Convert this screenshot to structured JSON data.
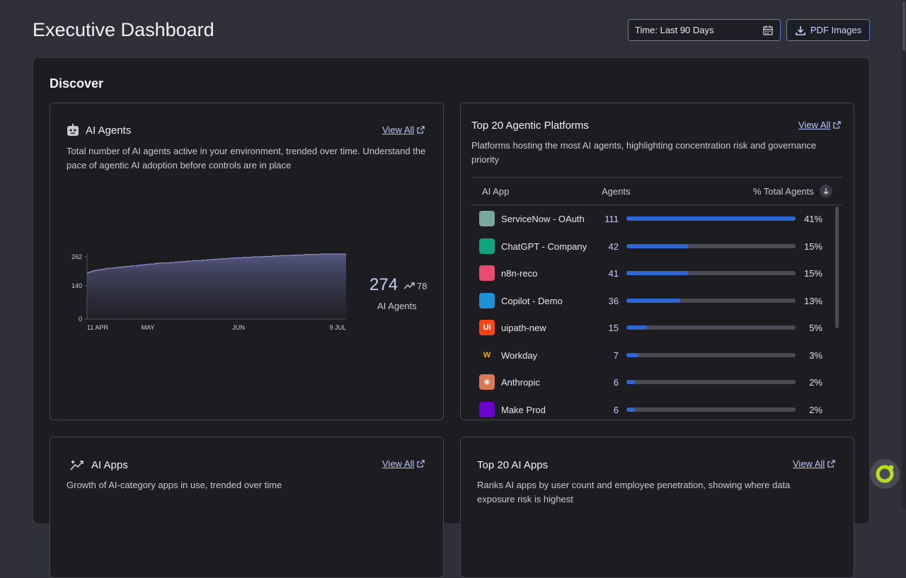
{
  "header": {
    "title": "Executive Dashboard",
    "time_filter": "Time: Last 90 Days",
    "pdf_button": "PDF Images"
  },
  "section": {
    "title": "Discover"
  },
  "ai_agents_card": {
    "title": "AI Agents",
    "view_all": "View All",
    "description": "Total number of AI agents active in your environment, trended over time. Understand the pace of agentic AI adoption before controls are in place",
    "total": "274",
    "delta": "78",
    "total_label": "AI Agents",
    "chart_data": {
      "type": "area",
      "x": [
        "11 APR",
        "",
        "",
        "",
        "",
        "",
        "",
        "",
        "",
        "",
        "",
        "",
        "",
        "",
        "",
        "",
        "",
        "",
        "",
        "",
        "",
        "",
        "",
        "",
        "",
        "",
        "",
        "",
        "",
        "",
        "",
        "",
        "",
        "",
        "",
        "",
        "",
        "",
        "",
        "",
        "",
        "",
        "",
        "",
        "",
        "",
        "",
        "",
        "",
        "",
        "",
        "",
        "",
        "",
        "",
        "",
        "",
        "",
        "",
        "",
        "",
        "",
        "",
        "",
        "",
        "",
        "",
        "",
        "",
        "",
        "",
        "",
        "",
        "",
        "",
        "",
        "",
        "",
        "",
        "",
        "",
        "",
        "",
        "",
        "",
        "",
        "",
        "",
        "9 JUL"
      ],
      "x_ticks": [
        "11 APR",
        "MAY",
        "JUN",
        "9 JUL"
      ],
      "y_ticks": [
        "0",
        "140",
        "262"
      ],
      "ylim": [
        0,
        274
      ],
      "values": [
        196,
        200,
        204,
        206,
        208,
        210,
        212,
        214,
        214,
        216,
        218,
        218,
        220,
        222,
        222,
        224,
        224,
        226,
        228,
        228,
        230,
        232,
        232,
        234,
        236,
        236,
        236,
        236,
        238,
        238,
        240,
        240,
        242,
        242,
        244,
        244,
        246,
        246,
        246,
        248,
        248,
        250,
        250,
        252,
        252,
        254,
        254,
        254,
        256,
        256,
        258,
        258,
        258,
        260,
        260,
        260,
        262,
        262,
        262,
        262,
        264,
        264,
        264,
        266,
        266,
        266,
        268,
        268,
        268,
        268,
        270,
        270,
        270,
        270,
        272,
        272,
        272,
        272,
        272,
        274,
        274,
        274,
        274,
        274,
        274,
        274,
        274,
        274,
        274
      ]
    }
  },
  "platforms_card": {
    "title": "Top 20 Agentic Platforms",
    "view_all": "View All",
    "description": "Platforms hosting the most AI agents, highlighting concentration risk and governance priority",
    "columns": {
      "app": "AI App",
      "agents": "Agents",
      "pct": "% Total Agents"
    },
    "rows": [
      {
        "name": "ServiceNow - OAuth",
        "agents": "111",
        "pct": "41%",
        "share": 1.0,
        "logo_color": "#7aa89a",
        "logo_text": ""
      },
      {
        "name": "ChatGPT - Company",
        "agents": "42",
        "pct": "15%",
        "share": 0.366,
        "logo_color": "#10a37f",
        "logo_text": ""
      },
      {
        "name": "n8n-reco",
        "agents": "41",
        "pct": "15%",
        "share": 0.366,
        "logo_color": "#ea4b71",
        "logo_text": ""
      },
      {
        "name": "Copilot - Demo",
        "agents": "36",
        "pct": "13%",
        "share": 0.317,
        "logo_color": "#1f8fd6",
        "logo_text": ""
      },
      {
        "name": "uipath-new",
        "agents": "15",
        "pct": "5%",
        "share": 0.122,
        "logo_color": "#fa4616",
        "logo_text": "Ui"
      },
      {
        "name": "Workday",
        "agents": "7",
        "pct": "3%",
        "share": 0.073,
        "logo_color": "#1c1c21",
        "logo_text": "W"
      },
      {
        "name": "Anthropic",
        "agents": "6",
        "pct": "2%",
        "share": 0.049,
        "logo_color": "#d97757",
        "logo_text": "✳"
      },
      {
        "name": "Make Prod",
        "agents": "6",
        "pct": "2%",
        "share": 0.049,
        "logo_color": "#6d00cc",
        "logo_text": ""
      }
    ]
  },
  "ai_apps_card": {
    "title": "AI Apps",
    "view_all": "View All",
    "description": "Growth of AI-category apps in use, trended over time"
  },
  "top_ai_apps_card": {
    "title": "Top 20 AI Apps",
    "view_all": "View All",
    "description": "Ranks AI apps by user count and employee penetration, showing where data exposure risk is highest"
  },
  "colors": {
    "accent": "#2f66d6",
    "link": "#b9c6ff",
    "panel": "#1c1c21",
    "background": "#2f3038"
  }
}
